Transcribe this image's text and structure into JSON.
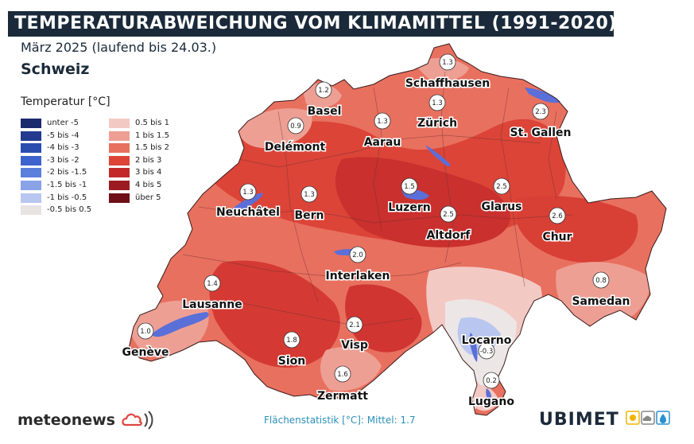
{
  "header": {
    "title": "TEMPERATURABWEICHUNG VOM KLIMAMITTEL (1991-2020)",
    "subtitle": "März 2025 (laufend bis 24.03.)",
    "region": "Schweiz"
  },
  "legend": {
    "title": "Temperatur [°C]",
    "items": [
      {
        "label": "unter -5",
        "color": "#1a2a6c"
      },
      {
        "label": "-5 bis -4",
        "color": "#233a8f"
      },
      {
        "label": "-4 bis -3",
        "color": "#2c4db0"
      },
      {
        "label": "-3 bis -2",
        "color": "#3d63cc"
      },
      {
        "label": "-2 bis -1.5",
        "color": "#5b7fdc"
      },
      {
        "label": "-1.5 bis -1",
        "color": "#8aa3e6"
      },
      {
        "label": "-1 bis -0.5",
        "color": "#b9c6ef"
      },
      {
        "label": "-0.5 bis 0.5",
        "color": "#e8e3e3"
      },
      {
        "label": "0.5 bis 1",
        "color": "#f3c9c4"
      },
      {
        "label": "1 bis 1.5",
        "color": "#ee9f94"
      },
      {
        "label": "1.5 bis 2",
        "color": "#e8705f"
      },
      {
        "label": "2 bis 3",
        "color": "#dc4438"
      },
      {
        "label": "3 bis 4",
        "color": "#c22a2a"
      },
      {
        "label": "4 bis 5",
        "color": "#9c1a22"
      },
      {
        "label": "über 5",
        "color": "#6e0f18"
      }
    ]
  },
  "stations": [
    {
      "name": "Schaffhausen",
      "value": "1.3"
    },
    {
      "name": "Basel",
      "value": "1.2"
    },
    {
      "name": "Zürich",
      "value": "1.3"
    },
    {
      "name": "St. Gallen",
      "value": "2.3"
    },
    {
      "name": "Delémont",
      "value": "0.9"
    },
    {
      "name": "Aarau",
      "value": "1.3"
    },
    {
      "name": "Neuchâtel",
      "value": "1.3"
    },
    {
      "name": "Bern",
      "value": "1.3"
    },
    {
      "name": "Luzern",
      "value": "1.5"
    },
    {
      "name": "Glarus",
      "value": "2.5"
    },
    {
      "name": "Altdorf",
      "value": "2.5"
    },
    {
      "name": "Chur",
      "value": "2.6"
    },
    {
      "name": "Interlaken",
      "value": "2.0"
    },
    {
      "name": "Lausanne",
      "value": "1.4"
    },
    {
      "name": "Samedan",
      "value": "0.8"
    },
    {
      "name": "Genève",
      "value": "1.0"
    },
    {
      "name": "Visp",
      "value": "2.1"
    },
    {
      "name": "Sion",
      "value": "1.8"
    },
    {
      "name": "Locarno",
      "value": "-0.3"
    },
    {
      "name": "Zermatt",
      "value": "1.6"
    },
    {
      "name": "Lugano",
      "value": "0.2"
    }
  ],
  "footer": {
    "statistic": "Flächenstatistik [°C]: Mittel: 1.7",
    "logo_left": "meteonews",
    "logo_right_a": "UBI",
    "logo_right_b": "MET"
  },
  "colors": {
    "map_base": "#e8705f",
    "map_warm": "#dc4438",
    "map_light": "#f3c9c4",
    "map_neutral": "#ede6e6",
    "lakes": "#5b6fd8"
  }
}
